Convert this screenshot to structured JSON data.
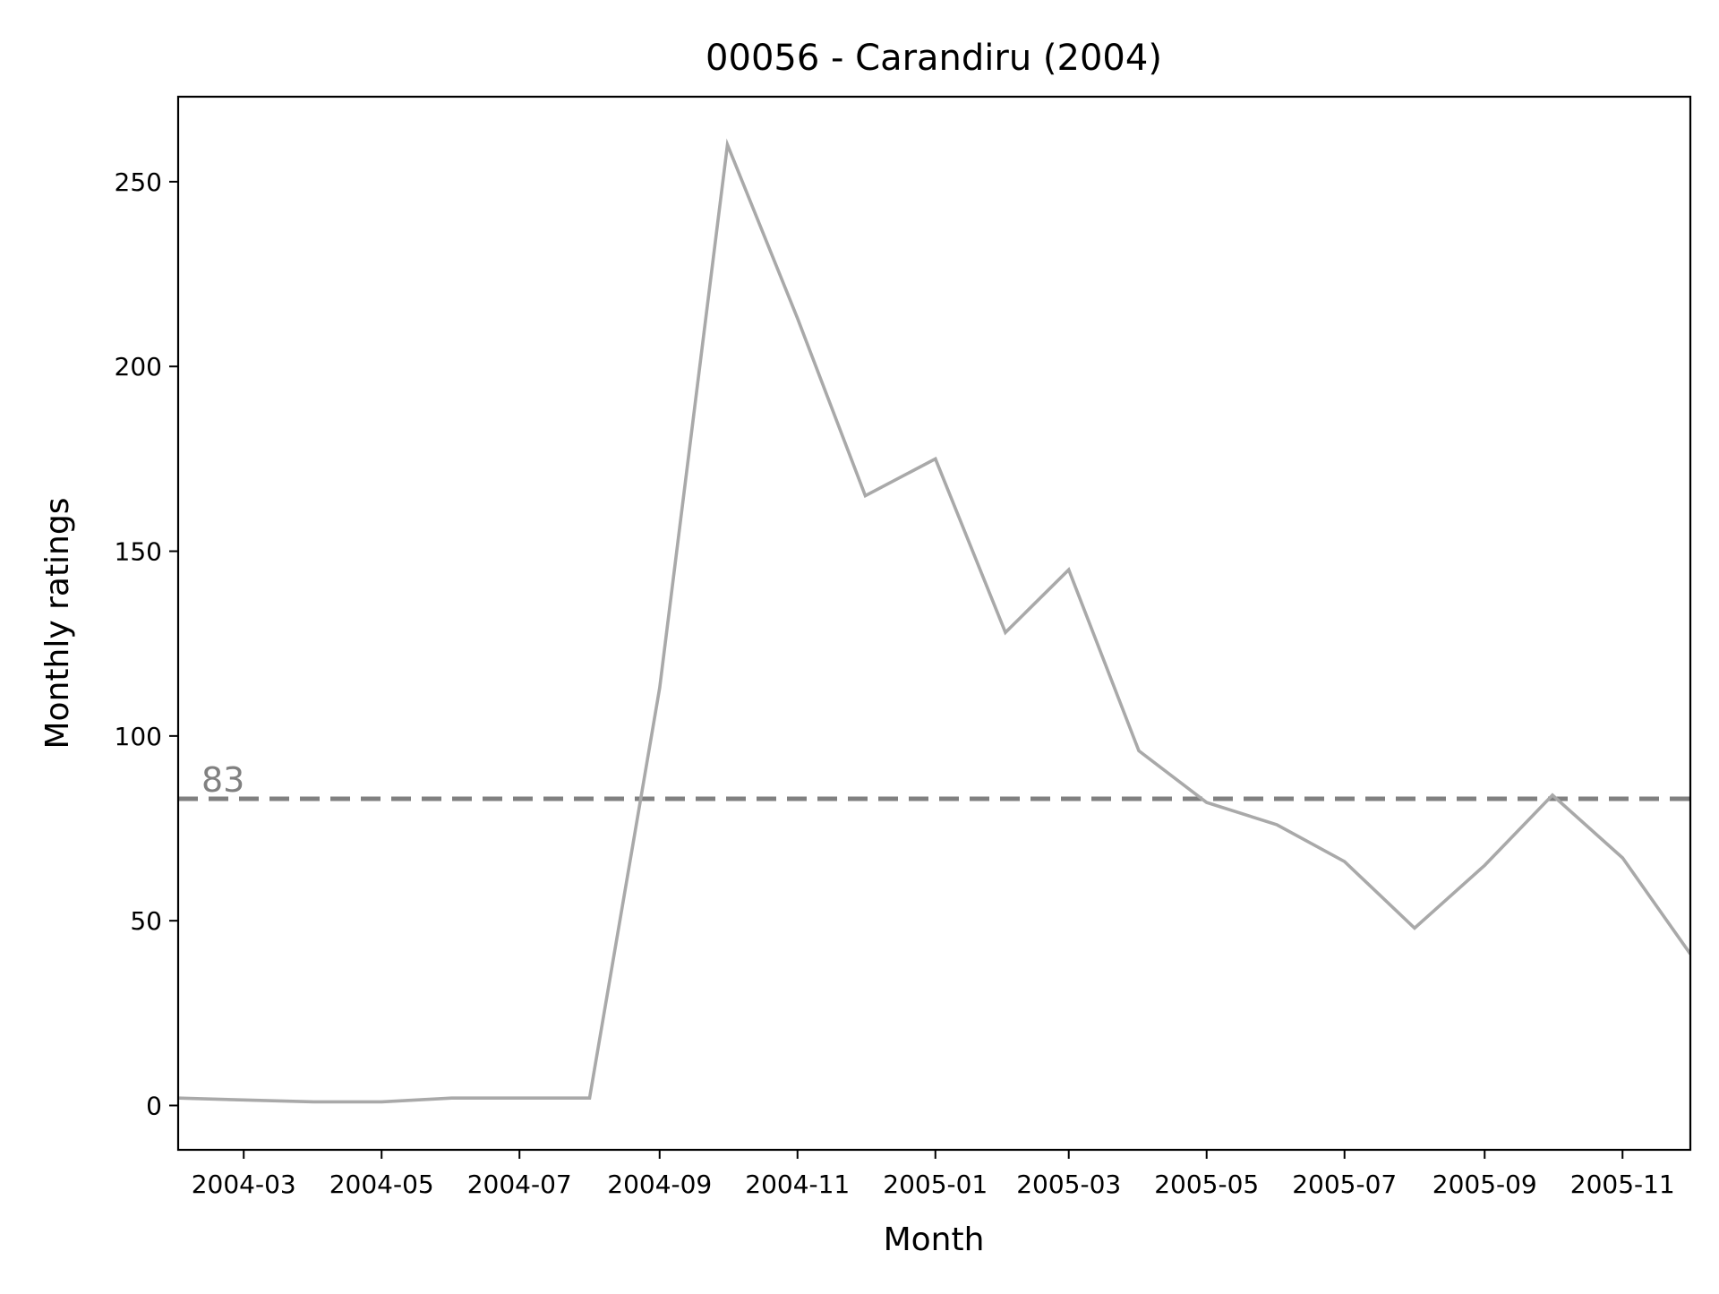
{
  "chart_data": {
    "type": "line",
    "title": "00056 - Carandiru (2004)",
    "xlabel": "Month",
    "ylabel": "Monthly ratings",
    "xlim": [
      "2004-02-01",
      "2005-12-01"
    ],
    "ylim": [
      -12,
      273
    ],
    "yticks": [
      0,
      50,
      100,
      150,
      200,
      250
    ],
    "xticks": [
      "2004-03",
      "2004-05",
      "2004-07",
      "2004-09",
      "2004-11",
      "2005-01",
      "2005-03",
      "2005-05",
      "2005-07",
      "2005-09",
      "2005-11"
    ],
    "grid": false,
    "series": [
      {
        "color": "#a9a9a9",
        "x": [
          "2004-02-01",
          "2004-03-01",
          "2004-04-01",
          "2004-05-01",
          "2004-06-01",
          "2004-07-01",
          "2004-08-01",
          "2004-09-01",
          "2004-10-01",
          "2004-11-01",
          "2004-12-01",
          "2005-01-01",
          "2005-02-01",
          "2005-03-01",
          "2005-04-01",
          "2005-05-01",
          "2005-06-01",
          "2005-07-01",
          "2005-08-01",
          "2005-09-01",
          "2005-10-01",
          "2005-11-01",
          "2005-12-01"
        ],
        "values": [
          2,
          1.5,
          1,
          1,
          2,
          2,
          2,
          113,
          260,
          213,
          165,
          175,
          128,
          145,
          96,
          82,
          76,
          66,
          48,
          65,
          84,
          67,
          41
        ]
      }
    ],
    "reference_line": {
      "value": 83,
      "label": "83",
      "color": "#808080",
      "style": "dashed"
    }
  }
}
